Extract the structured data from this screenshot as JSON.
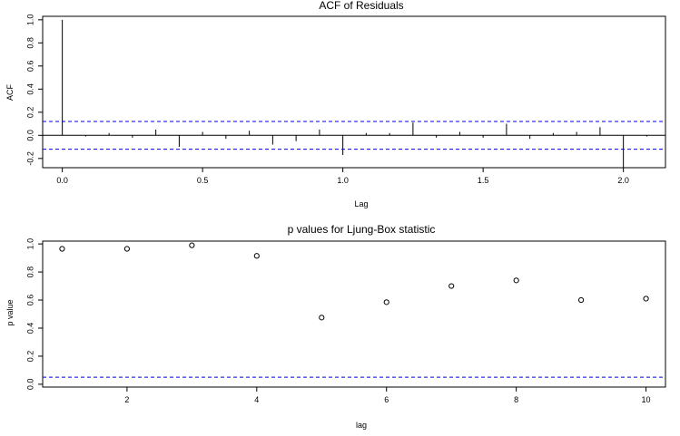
{
  "chart_data": [
    {
      "type": "bar",
      "title": "ACF of Residuals",
      "xlabel": "Lag",
      "ylabel": "ACF",
      "xlim": [
        -0.07,
        2.15
      ],
      "ylim": [
        -0.28,
        1.03
      ],
      "xticks": [
        0.0,
        0.5,
        1.0,
        1.5,
        2.0
      ],
      "xtick_labels": [
        "0.0",
        "0.5",
        "1.0",
        "1.5",
        "2.0"
      ],
      "yticks": [
        -0.2,
        0.0,
        0.2,
        0.4,
        0.6,
        0.8,
        1.0
      ],
      "ytick_labels": [
        "-0.2",
        "0.0",
        "0.2",
        "0.4",
        "0.6",
        "0.8",
        "1.0"
      ],
      "confidence_band": 0.12,
      "band_color": "#0000ee",
      "lags": [
        0.0,
        0.0833,
        0.1667,
        0.25,
        0.3333,
        0.4167,
        0.5,
        0.5833,
        0.6667,
        0.75,
        0.8333,
        0.9167,
        1.0,
        1.0833,
        1.1667,
        1.25,
        1.3333,
        1.4167,
        1.5,
        1.5833,
        1.6667,
        1.75,
        1.8333,
        1.9167,
        2.0,
        2.0833
      ],
      "values": [
        1.0,
        -0.01,
        0.02,
        -0.02,
        0.05,
        -0.1,
        0.03,
        -0.03,
        0.04,
        -0.08,
        -0.05,
        0.05,
        -0.17,
        0.02,
        0.02,
        0.11,
        -0.02,
        0.03,
        -0.02,
        0.1,
        -0.03,
        0.02,
        0.03,
        0.07,
        -0.28,
        -0.01
      ]
    },
    {
      "type": "scatter",
      "title": "p values for Ljung-Box statistic",
      "xlabel": "lag",
      "ylabel": "p value",
      "xlim": [
        0.7,
        10.3
      ],
      "ylim": [
        -0.02,
        1.02
      ],
      "xticks": [
        2,
        4,
        6,
        8,
        10
      ],
      "xtick_labels": [
        "2",
        "4",
        "6",
        "8",
        "10"
      ],
      "yticks": [
        0.0,
        0.2,
        0.4,
        0.6,
        0.8,
        1.0
      ],
      "ytick_labels": [
        "0.0",
        "0.2",
        "0.4",
        "0.6",
        "0.8",
        "1.0"
      ],
      "reference_line": 0.05,
      "line_color": "#0000ee",
      "x": [
        1,
        2,
        3,
        4,
        5,
        6,
        7,
        8,
        9,
        10
      ],
      "y": [
        0.965,
        0.965,
        0.99,
        0.915,
        0.475,
        0.585,
        0.7,
        0.74,
        0.6,
        0.61
      ]
    }
  ]
}
